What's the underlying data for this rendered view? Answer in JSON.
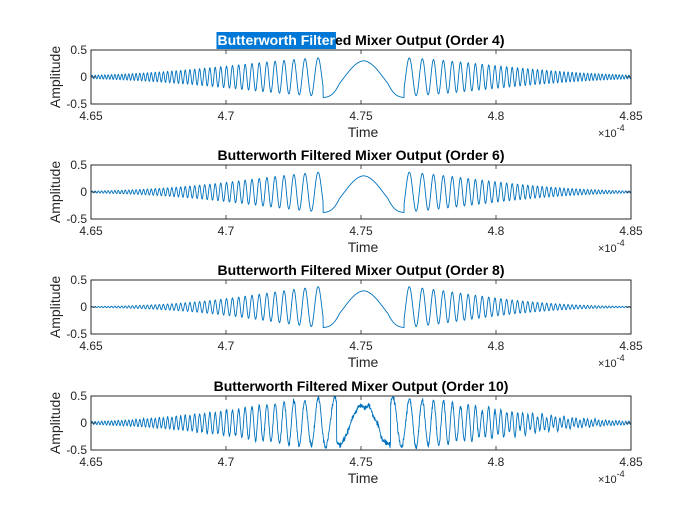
{
  "figure": {
    "background": "#ffffff",
    "line_color": "#0072bd",
    "axes_color": "#262626",
    "selection_color": "#0078d7"
  },
  "chart_data": [
    {
      "type": "line",
      "title": "Butterworth Filtered Mixer Output (Order 4)",
      "title_selected_text": "Butterworth Filter",
      "xlabel": "Time",
      "ylabel": "Amplitude",
      "xlim": [
        0.000465,
        0.000485
      ],
      "ylim": [
        -0.5,
        0.5
      ],
      "x_ticks": [
        4.65,
        4.7,
        4.75,
        4.8,
        4.85
      ],
      "x_tick_labels": [
        "4.65",
        "4.7",
        "4.75",
        "4.8",
        "4.85"
      ],
      "x_multiplier": "×10",
      "x_exponent": "-4",
      "y_ticks": [
        -0.5,
        0,
        0.5
      ],
      "y_tick_labels": [
        "-0.5",
        "0",
        "0.5"
      ],
      "grid": false,
      "legend": "none",
      "series": [
        {
          "order": 4,
          "peak_amplitude": 0.38,
          "center": 0.0004751,
          "envelope_sigma": 4.5e-06,
          "notch_width": 1.5e-06,
          "ripple": false
        }
      ]
    },
    {
      "type": "line",
      "title": "Butterworth Filtered Mixer Output (Order 6)",
      "xlabel": "Time",
      "ylabel": "Amplitude",
      "xlim": [
        0.000465,
        0.000485
      ],
      "ylim": [
        -0.5,
        0.5
      ],
      "x_ticks": [
        4.65,
        4.7,
        4.75,
        4.8,
        4.85
      ],
      "x_tick_labels": [
        "4.65",
        "4.7",
        "4.75",
        "4.8",
        "4.85"
      ],
      "x_multiplier": "×10",
      "x_exponent": "-4",
      "y_ticks": [
        -0.5,
        0,
        0.5
      ],
      "y_tick_labels": [
        "-0.5",
        "0",
        "0.5"
      ],
      "grid": false,
      "legend": "none",
      "series": [
        {
          "order": 6,
          "peak_amplitude": 0.4,
          "center": 0.0004751,
          "envelope_sigma": 4e-06,
          "notch_width": 1.5e-06,
          "ripple": false
        }
      ]
    },
    {
      "type": "line",
      "title": "Butterworth Filtered Mixer Output (Order 8)",
      "xlabel": "Time",
      "ylabel": "Amplitude",
      "xlim": [
        0.000465,
        0.000485
      ],
      "ylim": [
        -0.5,
        0.5
      ],
      "x_ticks": [
        4.65,
        4.7,
        4.75,
        4.8,
        4.85
      ],
      "x_tick_labels": [
        "4.65",
        "4.7",
        "4.75",
        "4.8",
        "4.85"
      ],
      "x_multiplier": "×10",
      "x_exponent": "-4",
      "y_ticks": [
        -0.5,
        0,
        0.5
      ],
      "y_tick_labels": [
        "-0.5",
        "0",
        "0.5"
      ],
      "grid": false,
      "legend": "none",
      "series": [
        {
          "order": 8,
          "peak_amplitude": 0.42,
          "center": 0.0004751,
          "envelope_sigma": 3.6e-06,
          "notch_width": 1.5e-06,
          "ripple": false
        }
      ]
    },
    {
      "type": "line",
      "title": "Butterworth Filtered Mixer Output (Order 10)",
      "xlabel": "Time",
      "ylabel": "Amplitude",
      "xlim": [
        0.000465,
        0.000485
      ],
      "ylim": [
        -0.5,
        0.5
      ],
      "x_ticks": [
        4.65,
        4.7,
        4.75,
        4.8,
        4.85
      ],
      "x_tick_labels": [
        "4.65",
        "4.7",
        "4.75",
        "4.8",
        "4.85"
      ],
      "x_multiplier": "×10",
      "x_exponent": "-4",
      "y_ticks": [
        -0.5,
        0,
        0.5
      ],
      "y_tick_labels": [
        "-0.5",
        "0",
        "0.5"
      ],
      "grid": false,
      "legend": "none",
      "series": [
        {
          "order": 10,
          "peak_amplitude": 0.48,
          "center": 0.0004751,
          "envelope_sigma": 4.2e-06,
          "notch_width": 1e-06,
          "ripple": true
        }
      ]
    }
  ]
}
